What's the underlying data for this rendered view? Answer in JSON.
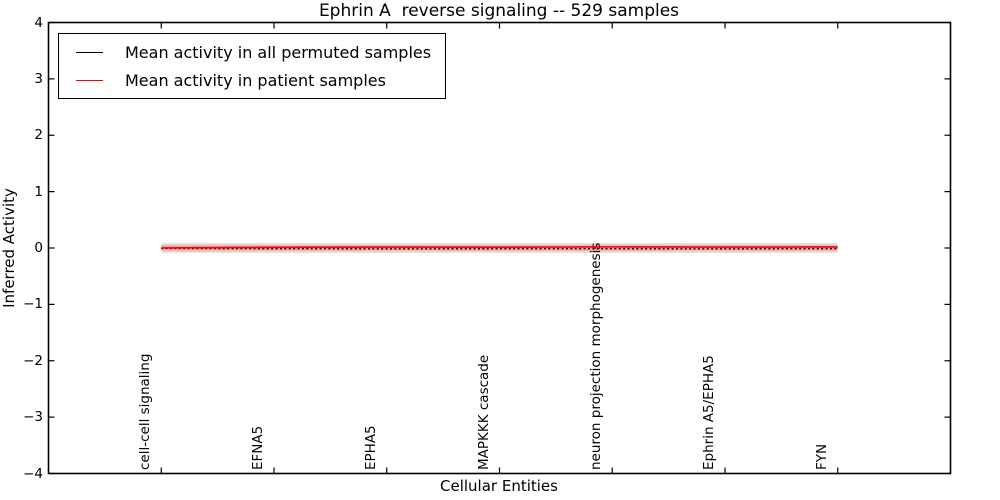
{
  "chart_data": {
    "type": "line",
    "title": "Ephrin A  reverse signaling -- 529 samples",
    "xlabel": "Cellular Entities",
    "ylabel": "Inferred Activity",
    "categories": [
      "cell-cell signaling",
      "EFNA5",
      "EPHA5",
      "MAPKKK cascade",
      "neuron projection morphogenesis",
      "Ephrin A5/EPHA5",
      "FYN"
    ],
    "yticks": [
      "4",
      "3",
      "2",
      "1",
      "0",
      "−1",
      "−2",
      "−3",
      "−4"
    ],
    "ylim": [
      -4,
      4
    ],
    "xlim_index": [
      -1,
      7
    ],
    "grid": false,
    "legend_position": "upper left",
    "series": [
      {
        "name": "Mean activity in all permuted samples",
        "color": "#000000",
        "values": [
          -0.005,
          -0.012,
          -0.014,
          -0.013,
          -0.013,
          -0.014,
          -0.012
        ]
      },
      {
        "name": "Mean activity in patient samples",
        "color": "#ff0000",
        "values": [
          0.002,
          0.012,
          0.016,
          0.014,
          0.02,
          0.016,
          0.018
        ]
      }
    ],
    "bands": [
      {
        "name": "permuted samples range",
        "color": "#000000",
        "opacity": 0.1,
        "half_width": 0.092
      },
      {
        "name": "patient samples range outer",
        "color": "#ff0000",
        "opacity": 0.1,
        "half_width": 0.067
      },
      {
        "name": "patient samples range inner",
        "color": "#ff0000",
        "opacity": 0.22,
        "half_width": 0.042
      }
    ]
  },
  "legend": {
    "items": [
      {
        "label": "Mean activity in all permuted samples",
        "color": "#000000"
      },
      {
        "label": "Mean activity in patient samples",
        "color": "#ff0000"
      }
    ]
  }
}
